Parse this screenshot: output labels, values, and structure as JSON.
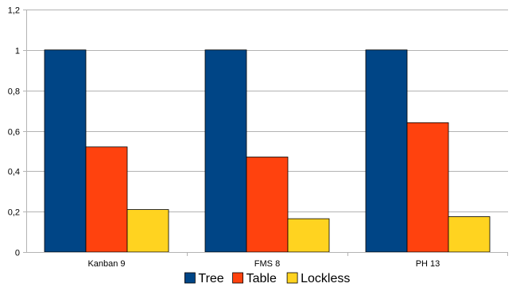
{
  "chart_data": {
    "type": "bar",
    "categories": [
      "Kanban 9",
      "FMS 8",
      "PH 13"
    ],
    "series": [
      {
        "name": "Tree",
        "values": [
          1.0,
          1.0,
          1.0
        ],
        "color": "#004586"
      },
      {
        "name": "Table",
        "values": [
          0.52,
          0.47,
          0.64
        ],
        "color": "#ff420e"
      },
      {
        "name": "Lockless",
        "values": [
          0.21,
          0.165,
          0.175
        ],
        "color": "#ffd320"
      }
    ],
    "ylim": [
      0,
      1.2
    ],
    "yticks": [
      0,
      0.2,
      0.4,
      0.6,
      0.8,
      1,
      1.2
    ],
    "ytick_labels": [
      "0",
      "0,2",
      "0,4",
      "0,6",
      "0,8",
      "1",
      "1,2"
    ],
    "grid": true,
    "grid_color": "#b3b3b3",
    "legend_position": "bottom",
    "title": "",
    "xlabel": "",
    "ylabel": ""
  }
}
